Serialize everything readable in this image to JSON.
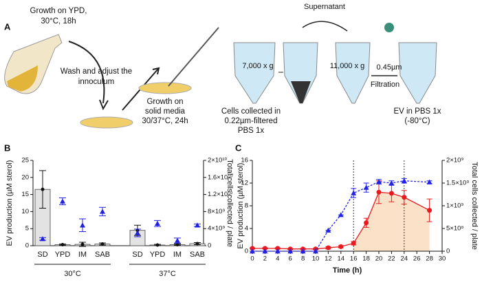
{
  "panel_a": {
    "label": "A",
    "growth_ypd": [
      "Growth on YPD,",
      "30°C, 18h"
    ],
    "wash": [
      "Wash and adjust the",
      "innoculum"
    ],
    "solid": [
      "Growth on",
      "solid media",
      "30/37°C, 24h"
    ],
    "supernatant": "Supernatant",
    "spin1": "7,000 x g",
    "spin2": "11,000 x g",
    "filter": "0.45µm",
    "filtration": "Filtration",
    "cells": [
      "Cells collected in",
      "0.22µm-filtered",
      "PBS 1x"
    ],
    "ev": [
      "EV in PBS 1x",
      "(-80°C)"
    ]
  },
  "chart_data": [
    {
      "type": "bar_scatter",
      "panel": "B",
      "ylabel": "EV production (µM sterol)",
      "y2label": "Total cells collected / plate",
      "groups": [
        {
          "name": "30°C",
          "categories": [
            "SD",
            "YPD",
            "IM",
            "SAB"
          ]
        },
        {
          "name": "37°C",
          "categories": [
            "SD",
            "YPD",
            "IM",
            "SAB"
          ]
        }
      ],
      "ylim": [
        0,
        25
      ],
      "yticks": [
        0,
        5,
        10,
        15,
        20,
        25
      ],
      "y2lim": [
        0,
        20000000000
      ],
      "y2ticks": [
        0,
        {
          "value": 4000000000,
          "label": "4×10⁹"
        },
        {
          "value": 8000000000,
          "label": "8×10⁹"
        },
        {
          "value": 12000000000,
          "label": "1.2×10¹⁰"
        },
        {
          "value": 16000000000,
          "label": "1.6×10¹⁰"
        },
        {
          "value": 20000000000,
          "label": "2×10¹⁰"
        }
      ],
      "series": [
        {
          "color": "#111111",
          "bar_color": "#e3e3e3",
          "marker": "circle",
          "values": [
            16.5,
            0.3,
            0.4,
            0.5,
            4.5,
            0.2,
            0.3,
            0.6
          ],
          "errors": [
            5.5,
            0.2,
            0.6,
            0.3,
            1.5,
            0.2,
            0.2,
            0.3
          ]
        },
        {
          "color": "#2020e0",
          "axis": "y2",
          "marker": "triangle",
          "values": [
            1600000000,
            10400000000,
            4800000000,
            8000000000,
            3000000000,
            5200000000,
            1200000000,
            4800000000
          ],
          "errors": [
            300000000,
            800000000,
            1500000000,
            1000000000,
            900000000,
            700000000,
            600000000,
            300000000
          ]
        }
      ]
    },
    {
      "type": "line",
      "panel": "C",
      "xlabel": "Time (h)",
      "ylabel": "EV production (µM sterol)",
      "y2label": "Total cells collected / plate",
      "xlim": [
        0,
        30
      ],
      "xticks": [
        0,
        2,
        4,
        6,
        8,
        10,
        12,
        14,
        16,
        18,
        20,
        22,
        24,
        26,
        28,
        30
      ],
      "ylim": [
        0,
        16
      ],
      "yticks": [
        0,
        4,
        8,
        12,
        16
      ],
      "y2lim": [
        0,
        2000000000
      ],
      "y2ticks": [
        0,
        {
          "value": 500000000,
          "label": "5×10⁸"
        },
        {
          "value": 1000000000,
          "label": "1×10⁹"
        },
        {
          "value": 1500000000,
          "label": "1.5×10⁹"
        },
        {
          "value": 2000000000,
          "label": "2×10⁹"
        }
      ],
      "vlines": [
        16,
        24
      ],
      "series": [
        {
          "color": "#e8191f",
          "marker": "circle",
          "fill": "#fbe1c8",
          "fill_from": 16,
          "x": [
            0,
            2,
            4,
            6,
            8,
            10,
            12,
            14,
            16,
            18,
            20,
            22,
            24,
            28
          ],
          "values": [
            0.5,
            0.5,
            0.5,
            0.4,
            0.4,
            0.4,
            0.6,
            0.8,
            1.4,
            5,
            10.4,
            10.2,
            9.5,
            7.2
          ],
          "errors": [
            0.1,
            0.1,
            0.1,
            0.1,
            0.1,
            0.1,
            0.2,
            0.2,
            0.3,
            0.8,
            2,
            1.5,
            1.2,
            2
          ]
        },
        {
          "color": "#2323e6",
          "axis": "y2",
          "marker": "triangle",
          "dash": true,
          "x": [
            0,
            2,
            4,
            6,
            8,
            10,
            12,
            14,
            16,
            18,
            20,
            22,
            24,
            28
          ],
          "values": [
            0,
            0,
            0,
            0,
            0,
            0,
            460000000,
            800000000,
            1280000000,
            1400000000,
            1530000000,
            1500000000,
            1550000000,
            1520000000
          ],
          "errors": [
            0,
            0,
            0,
            0,
            0,
            0,
            0,
            0,
            100000000,
            100000000,
            50000000,
            50000000,
            50000000,
            30000000
          ]
        }
      ]
    }
  ]
}
